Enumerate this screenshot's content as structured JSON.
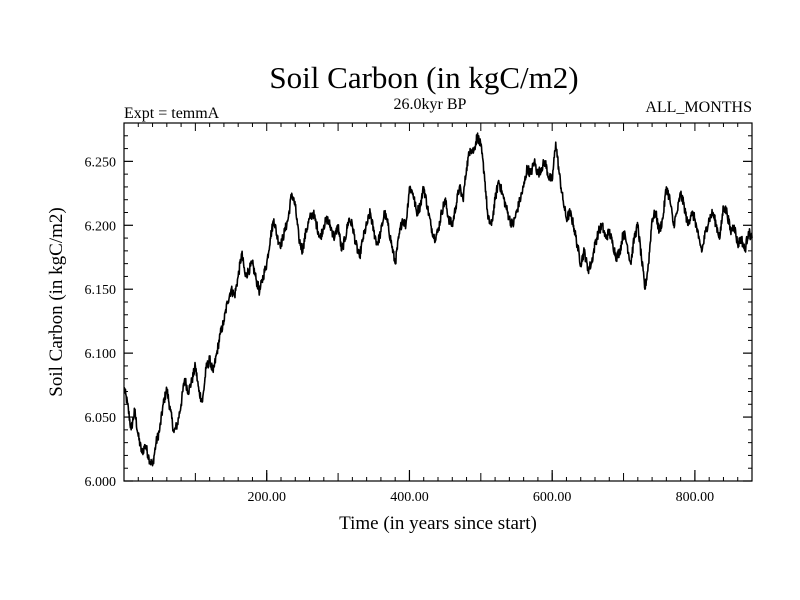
{
  "chart_data": {
    "type": "line",
    "title": "Soil Carbon (in kgC/m2)",
    "subtitle_left": "Expt = temmA",
    "subtitle_center": "26.0kyr BP",
    "subtitle_right": "ALL_MONTHS",
    "xlabel": "Time (in years since start)",
    "ylabel": "Soil Carbon (in kgC/m2)",
    "xlim": [
      0,
      880
    ],
    "ylim": [
      6.0,
      6.28
    ],
    "x_ticks": [
      200,
      400,
      600,
      800
    ],
    "x_tick_labels": [
      "200.00",
      "400.00",
      "600.00",
      "800.00"
    ],
    "y_ticks": [
      6.0,
      6.05,
      6.1,
      6.15,
      6.2,
      6.25
    ],
    "y_tick_labels": [
      "6.000",
      "6.050",
      "6.100",
      "6.150",
      "6.200",
      "6.250"
    ],
    "series": [
      {
        "name": "Soil Carbon",
        "color": "#000000",
        "x": [
          0,
          5,
          10,
          15,
          20,
          25,
          30,
          35,
          40,
          45,
          50,
          55,
          60,
          65,
          70,
          75,
          80,
          85,
          90,
          95,
          100,
          105,
          110,
          115,
          120,
          125,
          130,
          135,
          140,
          145,
          150,
          155,
          160,
          165,
          170,
          175,
          180,
          185,
          190,
          195,
          200,
          205,
          210,
          215,
          220,
          225,
          230,
          235,
          240,
          245,
          250,
          255,
          260,
          265,
          270,
          275,
          280,
          285,
          290,
          295,
          300,
          305,
          310,
          315,
          320,
          325,
          330,
          335,
          340,
          345,
          350,
          355,
          360,
          365,
          370,
          375,
          380,
          385,
          390,
          395,
          400,
          405,
          410,
          415,
          420,
          425,
          430,
          435,
          440,
          445,
          450,
          455,
          460,
          465,
          470,
          475,
          480,
          485,
          490,
          495,
          500,
          505,
          510,
          515,
          520,
          525,
          530,
          535,
          540,
          545,
          550,
          555,
          560,
          565,
          570,
          575,
          580,
          585,
          590,
          595,
          600,
          605,
          610,
          615,
          620,
          625,
          630,
          635,
          640,
          645,
          650,
          655,
          660,
          665,
          670,
          675,
          680,
          685,
          690,
          695,
          700,
          705,
          710,
          715,
          720,
          725,
          730,
          735,
          740,
          745,
          750,
          755,
          760,
          765,
          770,
          775,
          780,
          785,
          790,
          795,
          800,
          805,
          810,
          815,
          820,
          825,
          830,
          835,
          840,
          845,
          850,
          855,
          860,
          865,
          870,
          875,
          880
        ],
        "values": [
          6.073,
          6.06,
          6.04,
          6.055,
          6.035,
          6.022,
          6.028,
          6.018,
          6.012,
          6.03,
          6.04,
          6.06,
          6.072,
          6.055,
          6.038,
          6.045,
          6.06,
          6.08,
          6.07,
          6.078,
          6.09,
          6.07,
          6.062,
          6.088,
          6.095,
          6.085,
          6.1,
          6.115,
          6.125,
          6.14,
          6.15,
          6.145,
          6.16,
          6.178,
          6.16,
          6.165,
          6.17,
          6.158,
          6.148,
          6.16,
          6.17,
          6.19,
          6.205,
          6.19,
          6.185,
          6.195,
          6.205,
          6.225,
          6.215,
          6.19,
          6.18,
          6.195,
          6.205,
          6.21,
          6.2,
          6.19,
          6.2,
          6.205,
          6.198,
          6.19,
          6.2,
          6.18,
          6.19,
          6.205,
          6.2,
          6.185,
          6.175,
          6.19,
          6.2,
          6.21,
          6.195,
          6.185,
          6.195,
          6.21,
          6.2,
          6.185,
          6.17,
          6.19,
          6.205,
          6.2,
          6.23,
          6.225,
          6.21,
          6.215,
          6.23,
          6.215,
          6.2,
          6.19,
          6.195,
          6.21,
          6.22,
          6.205,
          6.2,
          6.215,
          6.23,
          6.22,
          6.245,
          6.26,
          6.258,
          6.27,
          6.262,
          6.24,
          6.205,
          6.2,
          6.22,
          6.235,
          6.225,
          6.215,
          6.205,
          6.2,
          6.21,
          6.22,
          6.23,
          6.245,
          6.24,
          6.25,
          6.24,
          6.245,
          6.25,
          6.238,
          6.235,
          6.265,
          6.24,
          6.22,
          6.205,
          6.21,
          6.2,
          6.185,
          6.17,
          6.18,
          6.165,
          6.17,
          6.185,
          6.195,
          6.2,
          6.19,
          6.195,
          6.185,
          6.175,
          6.18,
          6.195,
          6.185,
          6.17,
          6.19,
          6.2,
          6.175,
          6.15,
          6.17,
          6.205,
          6.21,
          6.195,
          6.205,
          6.23,
          6.22,
          6.2,
          6.21,
          6.225,
          6.215,
          6.2,
          6.21,
          6.205,
          6.19,
          6.18,
          6.195,
          6.205,
          6.21,
          6.2,
          6.19,
          6.215,
          6.21,
          6.195,
          6.2,
          6.185,
          6.19,
          6.18,
          6.195,
          6.19
        ]
      }
    ]
  }
}
